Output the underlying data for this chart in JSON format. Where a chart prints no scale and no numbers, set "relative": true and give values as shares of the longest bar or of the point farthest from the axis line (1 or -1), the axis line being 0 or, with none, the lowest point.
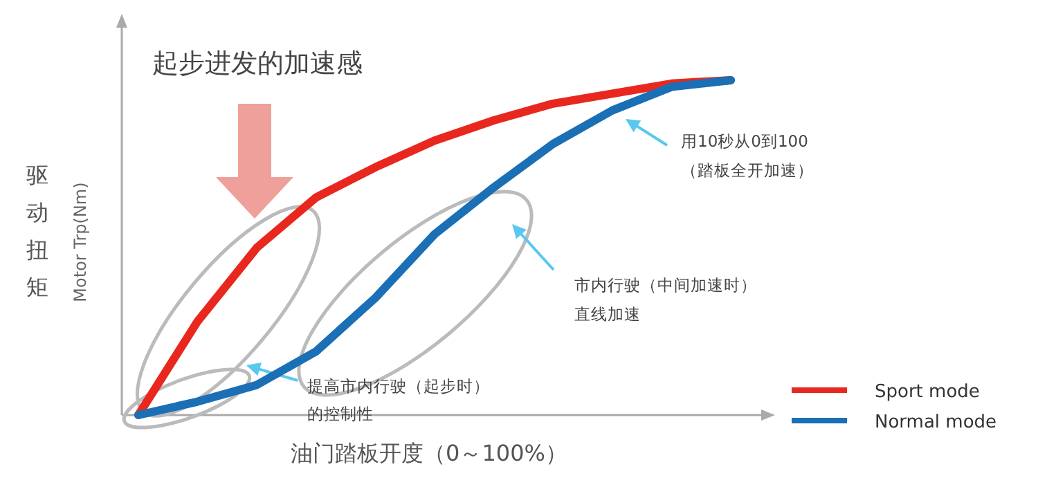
{
  "chart_data": {
    "type": "line",
    "relative": true,
    "title": "起步进发的加速感",
    "ylabel": "驱动扭矩",
    "xlabel": "油门踏板开度（0～100%）",
    "annotations": [
      "Motor Trp(Nm)",
      "用10秒从0到100",
      "（踏板全开加速）",
      "市内行驶（中间加速时）",
      "直线加速",
      "提高市内行驶（起步时）",
      "的控制性"
    ],
    "categories": [
      null,
      null,
      null,
      null,
      null,
      null,
      null,
      null,
      null,
      null,
      null
    ],
    "series": [
      {
        "name": "Sport mode",
        "color": "#e8281e",
        "values": [
          0,
          0.28,
          0.5,
          0.65,
          0.74,
          0.82,
          0.88,
          0.93,
          0.96,
          0.99,
          1
        ]
      },
      {
        "name": "Normal mode",
        "color": "#1a6fb5",
        "values": [
          0,
          0.04,
          0.09,
          0.19,
          0.35,
          0.54,
          0.68,
          0.81,
          0.91,
          0.98,
          1
        ]
      }
    ],
    "legend": "bottom right",
    "marker": "none",
    "line_style": "solid"
  }
}
